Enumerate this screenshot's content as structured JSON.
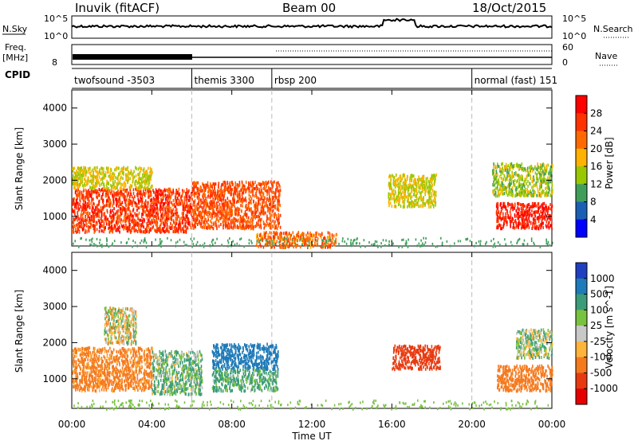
{
  "header": {
    "radar": "Inuvik (fitACF)",
    "beam": "Beam 00",
    "date": "18/Oct/2015"
  },
  "top_panels": {
    "nsky_label": "N.Sky",
    "nsky_ticks": [
      "10^5",
      "10^0"
    ],
    "nsearch_label": "N.Search",
    "nsearch_ticks": [
      "10^5",
      "10^0"
    ],
    "freq_label": "Freq.",
    "freq_unit": "[MHz]",
    "freq_ticks": [
      "8"
    ],
    "nave_label": "Nave",
    "nave_ticks": [
      "60",
      "0"
    ],
    "cpid_label": "CPID"
  },
  "cpid_segments": [
    {
      "label": "twofsound -3503",
      "start_h": 0
    },
    {
      "label": "themis 3300",
      "start_h": 6
    },
    {
      "label": "rbsp 200",
      "start_h": 10
    },
    {
      "label": "normal (fast) 151",
      "start_h": 20
    }
  ],
  "axes": {
    "ylabel": "Slant Range [km]",
    "xlabel": "Time UT",
    "x_ticks": [
      "00:00",
      "04:00",
      "08:00",
      "12:00",
      "16:00",
      "20:00",
      "00:00"
    ],
    "y_ticks": [
      "1000",
      "2000",
      "3000",
      "4000"
    ]
  },
  "power_colorbar": {
    "label": "Power [dB]",
    "ticks": [
      "28",
      "24",
      "20",
      "16",
      "12",
      "8",
      "4"
    ],
    "colors": [
      "#ff0000",
      "#ff3300",
      "#ff6a00",
      "#ffb300",
      "#9ac800",
      "#3f9f5a",
      "#1a5fb4",
      "#0000ff"
    ]
  },
  "velocity_colorbar": {
    "label": "Velocity [m s^-1]",
    "ticks": [
      "1000",
      "500",
      "100",
      "25",
      "-25",
      "-100",
      "-500",
      "-1000"
    ],
    "colors": [
      "#1f3fc0",
      "#1e7ab8",
      "#3a9c78",
      "#79c240",
      "#c8c8c8",
      "#ffb43c",
      "#f57a1e",
      "#e83a10",
      "#e60000"
    ]
  },
  "chart_data": [
    {
      "type": "heatmap",
      "title": "Power",
      "x_range_hours": [
        0,
        24
      ],
      "y_range_km": [
        180,
        4500
      ],
      "clusters": [
        {
          "t0": 0.0,
          "t1": 6.0,
          "r0": 600,
          "r1": 1800,
          "value": 24
        },
        {
          "t0": 0.0,
          "t1": 4.0,
          "r0": 1800,
          "r1": 2400,
          "value": 14
        },
        {
          "t0": 6.0,
          "t1": 10.4,
          "r0": 700,
          "r1": 2000,
          "value": 22
        },
        {
          "t0": 9.2,
          "t1": 13.2,
          "r0": 180,
          "r1": 600,
          "value": 20
        },
        {
          "t0": 15.8,
          "t1": 18.2,
          "r0": 1300,
          "r1": 2200,
          "value": 14
        },
        {
          "t0": 21.2,
          "t1": 24.0,
          "r0": 700,
          "r1": 1400,
          "value": 26
        },
        {
          "t0": 21.0,
          "t1": 24.0,
          "r0": 1600,
          "r1": 2500,
          "value": 12
        }
      ]
    },
    {
      "type": "heatmap",
      "title": "Velocity",
      "x_range_hours": [
        0,
        24
      ],
      "y_range_km": [
        180,
        4500
      ],
      "clusters": [
        {
          "t0": 0.0,
          "t1": 4.0,
          "r0": 700,
          "r1": 1900,
          "value": -200
        },
        {
          "t0": 1.6,
          "t1": 3.2,
          "r0": 2000,
          "r1": 3000,
          "value": 0
        },
        {
          "t0": 4.0,
          "t1": 6.5,
          "r0": 600,
          "r1": 1800,
          "value": 100
        },
        {
          "t0": 7.0,
          "t1": 10.3,
          "r0": 1300,
          "r1": 2000,
          "value": 800
        },
        {
          "t0": 7.0,
          "t1": 10.3,
          "r0": 700,
          "r1": 1300,
          "value": 150
        },
        {
          "t0": 16.0,
          "t1": 18.4,
          "r0": 1300,
          "r1": 1950,
          "value": -700
        },
        {
          "t0": 21.2,
          "t1": 24.0,
          "r0": 700,
          "r1": 1400,
          "value": -300
        },
        {
          "t0": 22.2,
          "t1": 24.0,
          "r0": 1600,
          "r1": 2400,
          "value": 50
        }
      ]
    }
  ]
}
